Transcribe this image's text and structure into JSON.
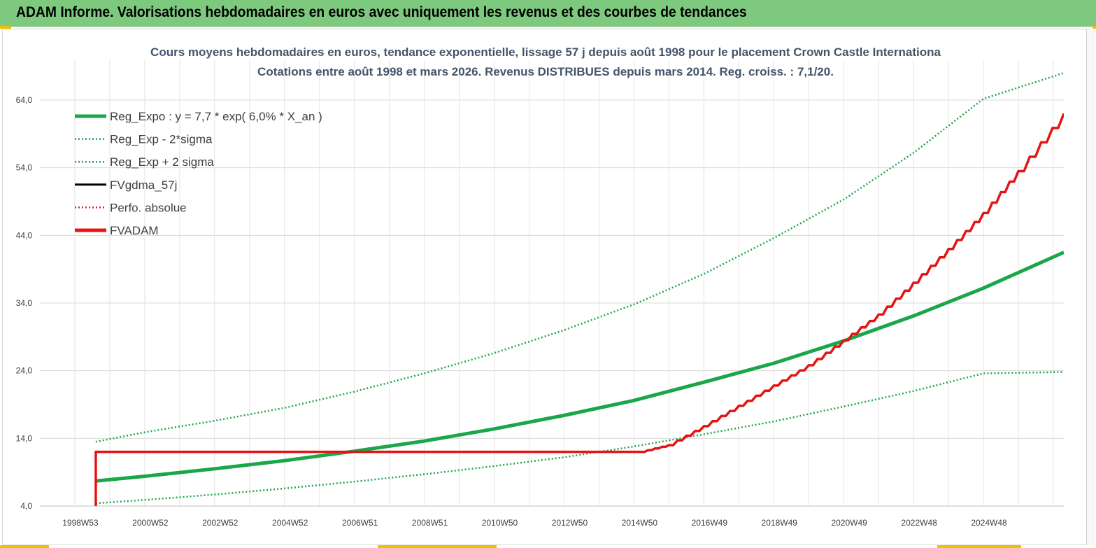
{
  "banner": {
    "title": "ADAM Informe. Valorisations hebdomadaires en euros avec uniquement les revenus et des courbes de tendances"
  },
  "chart_data": {
    "type": "line",
    "title_line1": "Cours moyens hebdomadaires en euros, tendance exponentielle, lissage 57 j depuis août 1998 pour le placement Crown Castle Internationa",
    "title_line2": "Cotations entre août 1998 et mars 2026.  Revenus DISTRIBUES  depuis mars  2014.  Reg. croiss. : 7,1/20.",
    "ylim": [
      4,
      64
    ],
    "xlim": [
      1997.0,
      2026.3
    ],
    "y_ticks": [
      "64,0",
      "54,0",
      "44,0",
      "34,0",
      "24,0",
      "14,0",
      "4,0"
    ],
    "x_tick_labels": [
      {
        "label": "1998W53",
        "x": 1999.0
      },
      {
        "label": "2000W52",
        "x": 2001.0
      },
      {
        "label": "2002W52",
        "x": 2003.0
      },
      {
        "label": "2004W52",
        "x": 2005.0
      },
      {
        "label": "2006W51",
        "x": 2007.0
      },
      {
        "label": "2008W51",
        "x": 2009.0
      },
      {
        "label": "2010W50",
        "x": 2011.0
      },
      {
        "label": "2012W50",
        "x": 2013.0
      },
      {
        "label": "2014W50",
        "x": 2015.0
      },
      {
        "label": "2016W49",
        "x": 2017.0
      },
      {
        "label": "2018W49",
        "x": 2019.0
      },
      {
        "label": "2020W49",
        "x": 2021.0
      },
      {
        "label": "2022W48",
        "x": 2023.0
      },
      {
        "label": "2024W48",
        "x": 2025.0
      }
    ],
    "grid": true,
    "legend_position": "top-left",
    "series": [
      {
        "name": "Reg_Expo : y = 7,7 * exp( 6,0% *  X_an )",
        "color": "#1aa64a",
        "style": "solid-thick",
        "x": [
          1998.6,
          2000,
          2002,
          2004,
          2006,
          2008,
          2010,
          2012,
          2014,
          2016,
          2018,
          2020,
          2022,
          2024,
          2026.3
        ],
        "y": [
          7.7,
          8.4,
          9.5,
          10.7,
          12.1,
          13.6,
          15.4,
          17.4,
          19.6,
          22.3,
          25.1,
          28.4,
          32.1,
          36.2,
          41.5
        ]
      },
      {
        "name": "Reg_Exp - 2*sigma",
        "color": "#1aa64a",
        "style": "dotted",
        "x": [
          1998.6,
          2000,
          2002,
          2004,
          2006,
          2008,
          2010,
          2012,
          2014,
          2016,
          2018,
          2020,
          2022,
          2024,
          2026.3
        ],
        "y": [
          4.4,
          4.9,
          5.7,
          6.6,
          7.6,
          8.7,
          9.9,
          11.2,
          12.8,
          14.6,
          16.5,
          18.7,
          21.0,
          23.6,
          23.8
        ]
      },
      {
        "name": "Reg_Exp + 2 sigma",
        "color": "#1aa64a",
        "style": "dotted",
        "x": [
          1998.6,
          2000,
          2002,
          2004,
          2006,
          2008,
          2010,
          2012,
          2014,
          2016,
          2018,
          2020,
          2022,
          2024,
          2026.3
        ],
        "y": [
          13.5,
          14.9,
          16.6,
          18.5,
          20.9,
          23.6,
          26.6,
          30.0,
          33.8,
          38.3,
          43.6,
          49.3,
          56.2,
          64.2,
          68.0
        ]
      },
      {
        "name": "FVgdma_57j",
        "color": "#000000",
        "style": "solid",
        "x": [],
        "y": []
      },
      {
        "name": "Perfo. absolue",
        "color": "#e02020",
        "style": "dotted",
        "x": [],
        "y": []
      },
      {
        "name": "FVADAM",
        "color": "#e41414",
        "style": "solid-thick",
        "x": [
          1998.6,
          1998.6,
          2014.2,
          2015.0,
          2016.0,
          2017.0,
          2018.0,
          2019.0,
          2020.0,
          2021.0,
          2022.0,
          2023.0,
          2024.0,
          2025.0,
          2026.3
        ],
        "y": [
          4.0,
          12.0,
          12.0,
          13.0,
          15.8,
          18.8,
          21.8,
          24.8,
          28.5,
          32.3,
          37.0,
          42.0,
          47.3,
          53.5,
          62.0
        ]
      }
    ]
  }
}
